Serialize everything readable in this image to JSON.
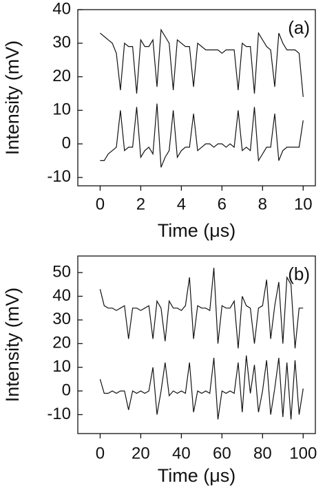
{
  "chart_data": [
    {
      "type": "line",
      "annotation": "(a)",
      "xlabel": "Time (μs)",
      "ylabel": "Intensity (mV)",
      "xlim": [
        -1.1,
        10.6
      ],
      "xticks": [
        0,
        2,
        4,
        6,
        8,
        10
      ],
      "ylim": [
        -12.5,
        40
      ],
      "yticks": [
        -10,
        0,
        10,
        20,
        30,
        40
      ],
      "x": [
        0,
        0.2,
        0.4,
        0.6,
        0.8,
        1.0,
        1.2,
        1.4,
        1.6,
        1.8,
        2.0,
        2.2,
        2.4,
        2.6,
        2.8,
        3.0,
        3.2,
        3.4,
        3.6,
        3.8,
        4.0,
        4.2,
        4.4,
        4.6,
        4.8,
        5.0,
        5.2,
        5.4,
        5.6,
        5.8,
        6.0,
        6.2,
        6.4,
        6.6,
        6.8,
        7.0,
        7.2,
        7.4,
        7.6,
        7.8,
        8.0,
        8.2,
        8.4,
        8.6,
        8.8,
        9.0,
        9.2,
        9.4,
        9.6,
        9.8,
        10.0
      ],
      "series": [
        {
          "color": "#111111",
          "values": [
            33,
            32,
            31,
            30,
            27,
            16,
            30,
            29,
            29,
            15,
            31,
            29,
            29,
            31,
            17,
            34,
            32,
            30,
            16,
            31,
            30,
            29,
            29,
            17,
            30,
            29,
            28,
            28,
            28,
            28,
            27,
            28,
            28,
            28,
            16,
            30,
            29,
            29,
            15,
            33,
            31,
            29,
            28,
            17,
            33,
            30,
            28,
            28,
            28,
            27,
            14
          ]
        },
        {
          "color": "#111111",
          "values": [
            -5,
            -5,
            -3,
            -2,
            -1,
            10,
            -2,
            -1,
            -1,
            11,
            -4,
            -2,
            -1,
            -3,
            12,
            -7,
            -4,
            -2,
            10,
            -4,
            -2,
            -1,
            -1,
            9,
            -2,
            -1,
            0,
            0,
            -1,
            0,
            0,
            -1,
            0,
            -1,
            10,
            -2,
            -1,
            -2,
            11,
            -5,
            -3,
            -1,
            -1,
            9,
            -5,
            -2,
            -1,
            -1,
            -1,
            -1,
            7
          ]
        }
      ]
    },
    {
      "type": "line",
      "annotation": "(b)",
      "xlabel": "Time (μs)",
      "ylabel": "Intensity (mV)",
      "xlim": [
        -11,
        106
      ],
      "xticks": [
        0,
        20,
        40,
        60,
        80,
        100
      ],
      "ylim": [
        -18,
        57
      ],
      "yticks": [
        -10,
        0,
        10,
        20,
        30,
        40,
        50
      ],
      "x": [
        0,
        2,
        4,
        6,
        8,
        10,
        12,
        14,
        16,
        18,
        20,
        22,
        24,
        26,
        28,
        30,
        32,
        34,
        36,
        38,
        40,
        42,
        44,
        46,
        48,
        50,
        52,
        54,
        56,
        58,
        60,
        62,
        64,
        66,
        68,
        70,
        72,
        74,
        76,
        78,
        80,
        82,
        84,
        86,
        88,
        90,
        92,
        94,
        96,
        98,
        100
      ],
      "series": [
        {
          "color": "#111111",
          "values": [
            43,
            36,
            35,
            35,
            34,
            35,
            36,
            22,
            35,
            35,
            34,
            35,
            36,
            22,
            38,
            35,
            21,
            38,
            35,
            35,
            34,
            36,
            48,
            22,
            36,
            35,
            35,
            34,
            52,
            20,
            36,
            35,
            35,
            38,
            18,
            40,
            36,
            35,
            20,
            35,
            36,
            47,
            22,
            36,
            46,
            20,
            48,
            45,
            18,
            35,
            35
          ]
        },
        {
          "color": "#111111",
          "values": [
            5,
            -1,
            -1,
            0,
            -1,
            0,
            0,
            -8,
            0,
            -1,
            0,
            -1,
            0,
            10,
            -10,
            0,
            12,
            -2,
            0,
            -1,
            0,
            -1,
            12,
            -9,
            0,
            -1,
            0,
            -1,
            14,
            -12,
            0,
            -1,
            0,
            -1,
            12,
            -9,
            15,
            -1,
            11,
            -9,
            0,
            13,
            -10,
            1,
            14,
            -11,
            12,
            -12,
            13,
            -10,
            1
          ]
        }
      ]
    }
  ]
}
